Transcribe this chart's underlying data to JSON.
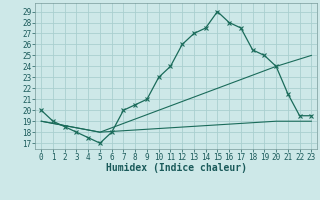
{
  "xlabel": "Humidex (Indice chaleur)",
  "ylabel": "",
  "background_color": "#cde8e8",
  "grid_color": "#aacfcf",
  "line_color": "#1a6b5a",
  "xlim": [
    -0.5,
    23.5
  ],
  "ylim": [
    16.5,
    29.8
  ],
  "xticks": [
    0,
    1,
    2,
    3,
    4,
    5,
    6,
    7,
    8,
    9,
    10,
    11,
    12,
    13,
    14,
    15,
    16,
    17,
    18,
    19,
    20,
    21,
    22,
    23
  ],
  "yticks": [
    17,
    18,
    19,
    20,
    21,
    22,
    23,
    24,
    25,
    26,
    27,
    28,
    29
  ],
  "curve1_x": [
    0,
    1,
    2,
    3,
    4,
    5,
    6,
    7,
    8,
    9,
    10,
    11,
    12,
    13,
    14,
    15,
    16,
    17,
    18,
    19,
    20,
    21,
    22,
    23
  ],
  "curve1_y": [
    20,
    19,
    18.5,
    18,
    17.5,
    17,
    18,
    20,
    20.5,
    21,
    23,
    24,
    26,
    27,
    27.5,
    29,
    28,
    27.5,
    25.5,
    25,
    24,
    21.5,
    19.5,
    19.5
  ],
  "curve2_x": [
    0,
    5,
    20,
    23
  ],
  "curve2_y": [
    19,
    18,
    24,
    25
  ],
  "curve3_x": [
    0,
    5,
    20,
    23
  ],
  "curve3_y": [
    19,
    18,
    19,
    19
  ],
  "tick_fontsize": 5.5,
  "xlabel_fontsize": 7,
  "label_color": "#1a5a5a"
}
